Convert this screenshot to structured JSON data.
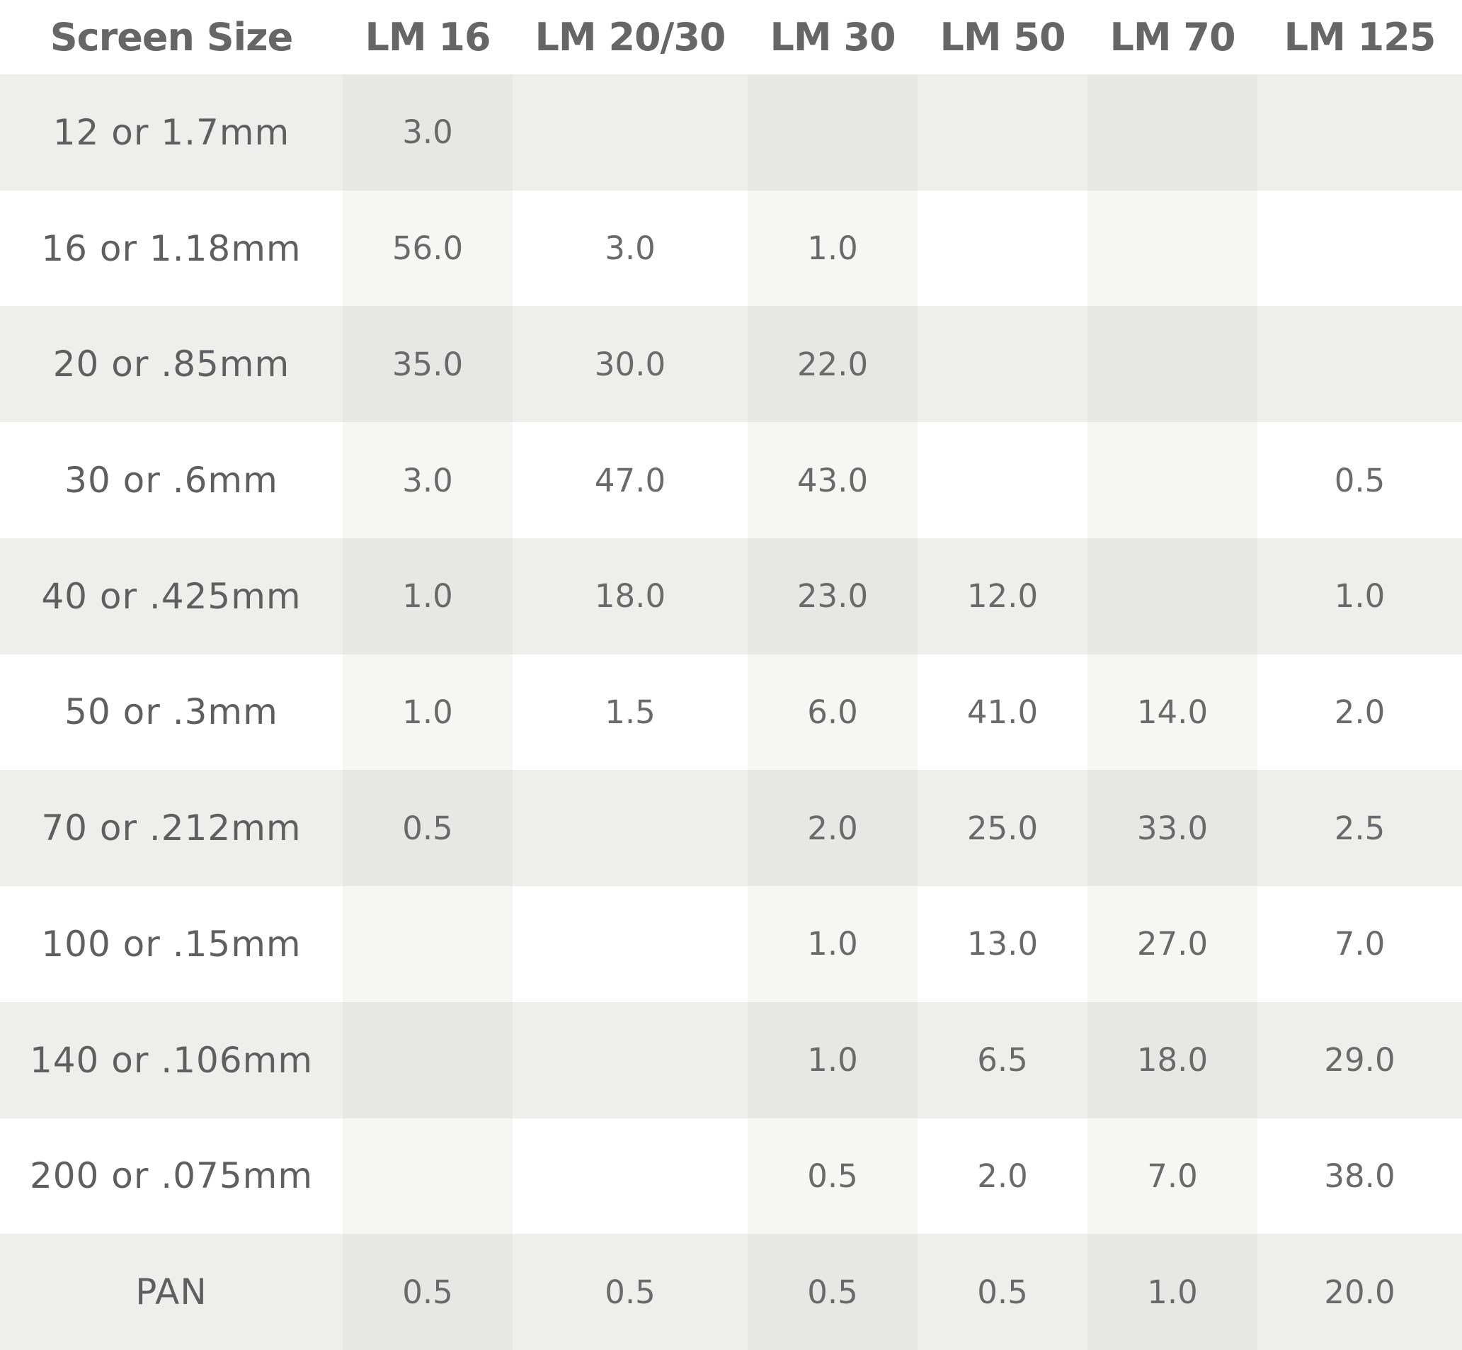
{
  "table": {
    "headers": [
      "Screen Size",
      "LM 16",
      "LM 20/30",
      "LM 30",
      "LM 50",
      "LM 70",
      "LM 125"
    ],
    "rows": [
      {
        "label": "12  or  1.7mm",
        "values": [
          "3.0",
          "",
          "",
          "",
          "",
          ""
        ]
      },
      {
        "label": "16  or  1.18mm",
        "values": [
          "56.0",
          "3.0",
          "1.0",
          "",
          "",
          ""
        ]
      },
      {
        "label": "20  or  .85mm",
        "values": [
          "35.0",
          "30.0",
          "22.0",
          "",
          "",
          ""
        ]
      },
      {
        "label": "30  or  .6mm",
        "values": [
          "3.0",
          "47.0",
          "43.0",
          "",
          "",
          "0.5"
        ]
      },
      {
        "label": "40  or  .425mm",
        "values": [
          "1.0",
          "18.0",
          "23.0",
          "12.0",
          "",
          "1.0"
        ]
      },
      {
        "label": "50  or  .3mm",
        "values": [
          "1.0",
          "1.5",
          "6.0",
          "41.0",
          "14.0",
          "2.0"
        ]
      },
      {
        "label": "70  or  .212mm",
        "values": [
          "0.5",
          "",
          "2.0",
          "25.0",
          "33.0",
          "2.5"
        ]
      },
      {
        "label": "100  or  .15mm",
        "values": [
          "",
          "",
          "1.0",
          "13.0",
          "27.0",
          "7.0"
        ]
      },
      {
        "label": "140  or  .106mm",
        "values": [
          "",
          "",
          "1.0",
          "6.5",
          "18.0",
          "29.0"
        ]
      },
      {
        "label": "200  or  .075mm",
        "values": [
          "",
          "",
          "0.5",
          "2.0",
          "7.0",
          "38.0"
        ]
      },
      {
        "label": "PAN",
        "values": [
          "0.5",
          "0.5",
          "0.5",
          "0.5",
          "1.0",
          "20.0"
        ]
      }
    ]
  }
}
